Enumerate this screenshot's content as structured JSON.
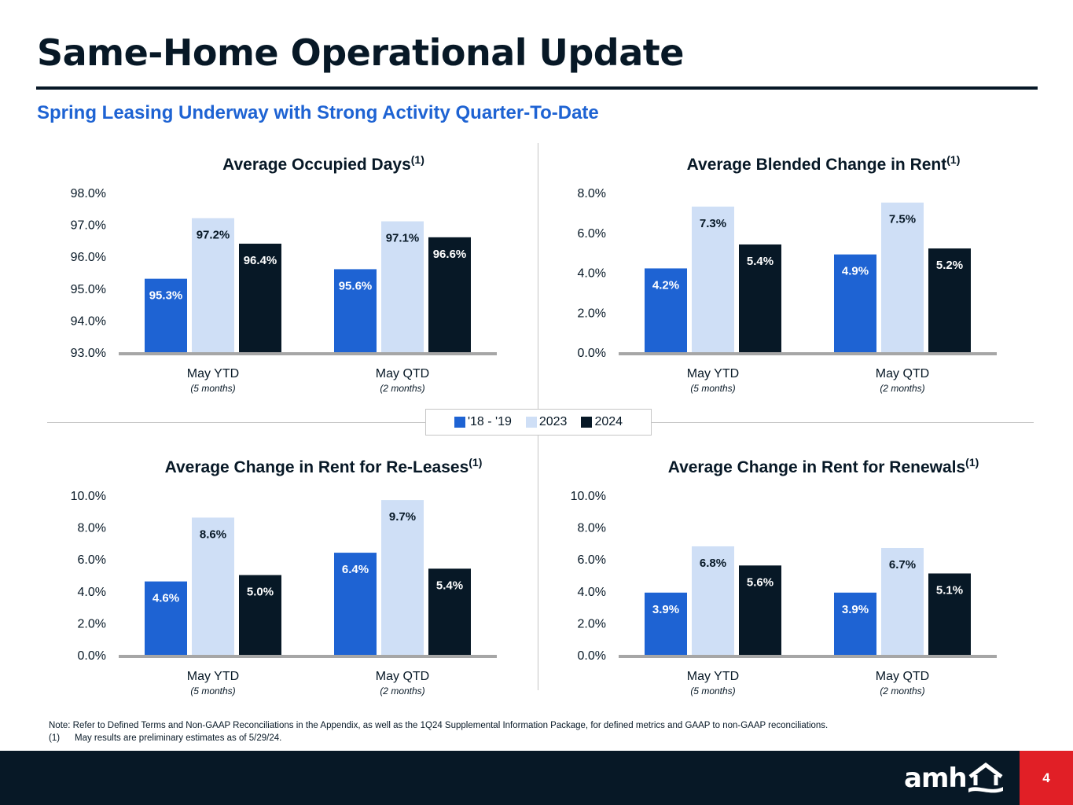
{
  "header": {
    "title": "Same-Home Operational Update",
    "subtitle": "Spring Leasing Underway with Strong Activity Quarter-To-Date"
  },
  "colors": {
    "series_2018_19": "#1e63d3",
    "series_2023": "#cfdff6",
    "series_2024": "#071826",
    "accent_red": "#e11f26",
    "axis": "#a6a6a6"
  },
  "legend": {
    "items": [
      {
        "label": "'18 - '19",
        "color": "#1e63d3"
      },
      {
        "label": "2023",
        "color": "#cfdff6"
      },
      {
        "label": "2024",
        "color": "#071826"
      }
    ]
  },
  "chart_data": [
    {
      "type": "bar",
      "title": "Average Occupied Days",
      "title_superscript": "(1)",
      "categories": [
        "May YTD",
        "May QTD"
      ],
      "category_sublabels": [
        "(5 months)",
        "(2 months)"
      ],
      "ylim": [
        93.0,
        98.0
      ],
      "yticks": [
        93.0,
        94.0,
        95.0,
        96.0,
        97.0,
        98.0
      ],
      "ytick_labels": [
        "93.0%",
        "94.0%",
        "95.0%",
        "96.0%",
        "97.0%",
        "98.0%"
      ],
      "series": [
        {
          "name": "'18 - '19",
          "values": [
            95.3,
            95.6
          ],
          "labels": [
            "95.3%",
            "95.6%"
          ]
        },
        {
          "name": "2023",
          "values": [
            97.2,
            97.1
          ],
          "labels": [
            "97.2%",
            "97.1%"
          ]
        },
        {
          "name": "2024",
          "values": [
            96.4,
            96.6
          ],
          "labels": [
            "96.4%",
            "96.6%"
          ]
        }
      ],
      "grid": false,
      "legend_position": "center"
    },
    {
      "type": "bar",
      "title": "Average Blended Change in Rent",
      "title_superscript": "(1)",
      "categories": [
        "May YTD",
        "May QTD"
      ],
      "category_sublabels": [
        "(5 months)",
        "(2 months)"
      ],
      "ylim": [
        0.0,
        8.0
      ],
      "yticks": [
        0.0,
        2.0,
        4.0,
        6.0,
        8.0
      ],
      "ytick_labels": [
        "0.0%",
        "2.0%",
        "4.0%",
        "6.0%",
        "8.0%"
      ],
      "series": [
        {
          "name": "'18 - '19",
          "values": [
            4.2,
            4.9
          ],
          "labels": [
            "4.2%",
            "4.9%"
          ]
        },
        {
          "name": "2023",
          "values": [
            7.3,
            7.5
          ],
          "labels": [
            "7.3%",
            "7.5%"
          ]
        },
        {
          "name": "2024",
          "values": [
            5.4,
            5.2
          ],
          "labels": [
            "5.4%",
            "5.2%"
          ]
        }
      ],
      "grid": false,
      "legend_position": "center"
    },
    {
      "type": "bar",
      "title": "Average Change in Rent for Re-Leases",
      "title_superscript": "(1)",
      "categories": [
        "May YTD",
        "May QTD"
      ],
      "category_sublabels": [
        "(5 months)",
        "(2 months)"
      ],
      "ylim": [
        0.0,
        10.0
      ],
      "yticks": [
        0.0,
        2.0,
        4.0,
        6.0,
        8.0,
        10.0
      ],
      "ytick_labels": [
        "0.0%",
        "2.0%",
        "4.0%",
        "6.0%",
        "8.0%",
        "10.0%"
      ],
      "series": [
        {
          "name": "'18 - '19",
          "values": [
            4.6,
            6.4
          ],
          "labels": [
            "4.6%",
            "6.4%"
          ]
        },
        {
          "name": "2023",
          "values": [
            8.6,
            9.7
          ],
          "labels": [
            "8.6%",
            "9.7%"
          ]
        },
        {
          "name": "2024",
          "values": [
            5.0,
            5.4
          ],
          "labels": [
            "5.0%",
            "5.4%"
          ]
        }
      ],
      "grid": false,
      "legend_position": "center"
    },
    {
      "type": "bar",
      "title": "Average Change in Rent for Renewals",
      "title_superscript": "(1)",
      "categories": [
        "May YTD",
        "May QTD"
      ],
      "category_sublabels": [
        "(5 months)",
        "(2 months)"
      ],
      "ylim": [
        0.0,
        10.0
      ],
      "yticks": [
        0.0,
        2.0,
        4.0,
        6.0,
        8.0,
        10.0
      ],
      "ytick_labels": [
        "0.0%",
        "2.0%",
        "4.0%",
        "6.0%",
        "8.0%",
        "10.0%"
      ],
      "series": [
        {
          "name": "'18 - '19",
          "values": [
            3.9,
            3.9
          ],
          "labels": [
            "3.9%",
            "3.9%"
          ]
        },
        {
          "name": "2023",
          "values": [
            6.8,
            6.7
          ],
          "labels": [
            "6.8%",
            "6.7%"
          ]
        },
        {
          "name": "2024",
          "values": [
            5.6,
            5.1
          ],
          "labels": [
            "5.6%",
            "5.1%"
          ]
        }
      ],
      "grid": false,
      "legend_position": "center"
    }
  ],
  "footnotes": {
    "note": "Note: Refer to Defined Terms and Non-GAAP Reconciliations in the Appendix, as well as the 1Q24 Supplemental Information Package, for defined metrics and GAAP to non-GAAP reconciliations.",
    "footnote_1_marker": "(1)",
    "footnote_1_text": "May results are preliminary estimates as of 5/29/24."
  },
  "footer": {
    "logo_text": "amh",
    "logo_icon": "house-icon",
    "page_number": "4"
  }
}
